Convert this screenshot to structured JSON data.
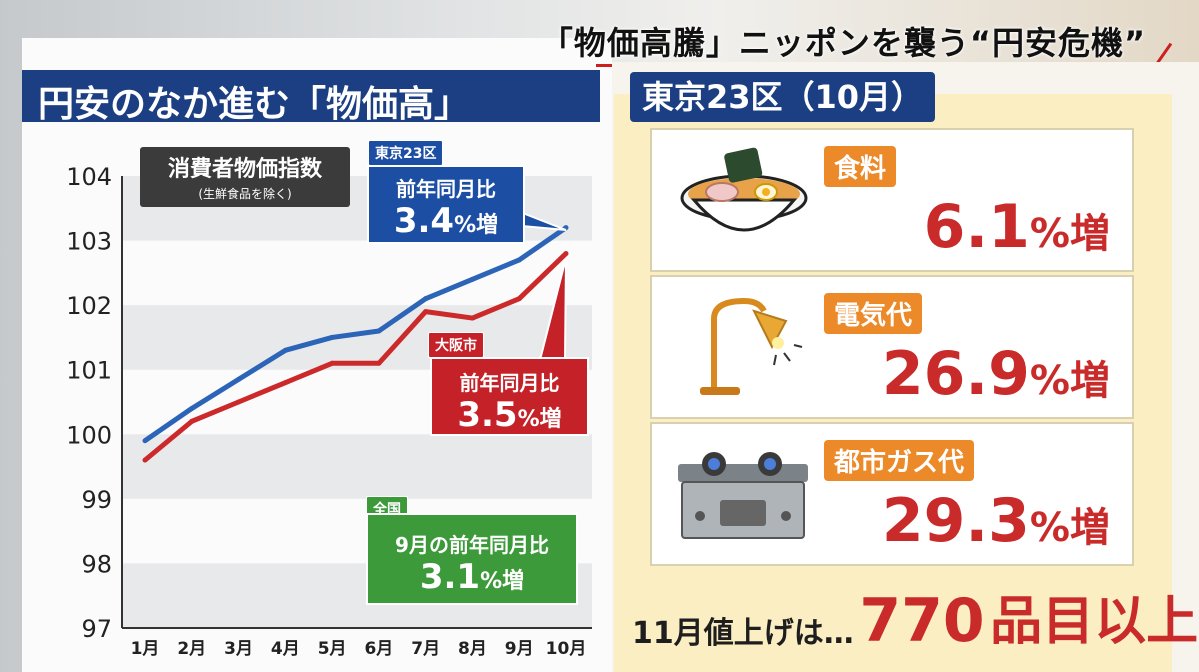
{
  "banner": "「物価高騰」ニッポンを襲う“円安危機”",
  "left_title": "円安のなか進む「物価高」",
  "cpi_label": {
    "main": "消費者物価指数",
    "sub": "(生鮮食品を除く)"
  },
  "callouts": {
    "tokyo": {
      "tag": "東京23区",
      "sub": "前年同月比",
      "value": "3.4",
      "unit": "%増"
    },
    "osaka": {
      "tag": "大阪市",
      "sub": "前年同月比",
      "value": "3.5",
      "unit": "%増"
    },
    "national": {
      "tag": "全国",
      "sub": "9月の前年同月比",
      "value": "3.1",
      "unit": "%増"
    }
  },
  "chart_data": {
    "type": "line",
    "categories": [
      "1月",
      "2月",
      "3月",
      "4月",
      "5月",
      "6月",
      "7月",
      "8月",
      "9月",
      "10月"
    ],
    "ylim": [
      97,
      104
    ],
    "yticks": [
      97,
      98,
      99,
      100,
      101,
      102,
      103,
      104
    ],
    "series": [
      {
        "name": "東京23区",
        "color": "#2c64b8",
        "values": [
          99.9,
          100.4,
          100.85,
          101.3,
          101.5,
          101.6,
          102.1,
          102.4,
          102.7,
          103.2
        ]
      },
      {
        "name": "大阪市",
        "color": "#cc2a2a",
        "values": [
          99.6,
          100.2,
          100.5,
          100.8,
          101.1,
          101.1,
          101.9,
          101.8,
          102.1,
          102.8
        ]
      }
    ],
    "grid": "horizontal-bands"
  },
  "right": {
    "title": "東京23区（10月）",
    "items": [
      {
        "label": "食料",
        "value": "6.1",
        "unit": "%増",
        "icon": "ramen-icon"
      },
      {
        "label": "電気代",
        "value": "26.9",
        "unit": "%増",
        "icon": "lamp-icon"
      },
      {
        "label": "都市ガス代",
        "value": "29.3",
        "unit": "%増",
        "icon": "gas-stove-icon"
      }
    ],
    "bottom": {
      "lead": "11月値上げは…",
      "number": "770",
      "tail": "品目以上"
    }
  },
  "colors": {
    "navy": "#1c3f83",
    "red": "#c92a2a",
    "orange": "#ec8a2a",
    "green": "#3d9a3a"
  }
}
